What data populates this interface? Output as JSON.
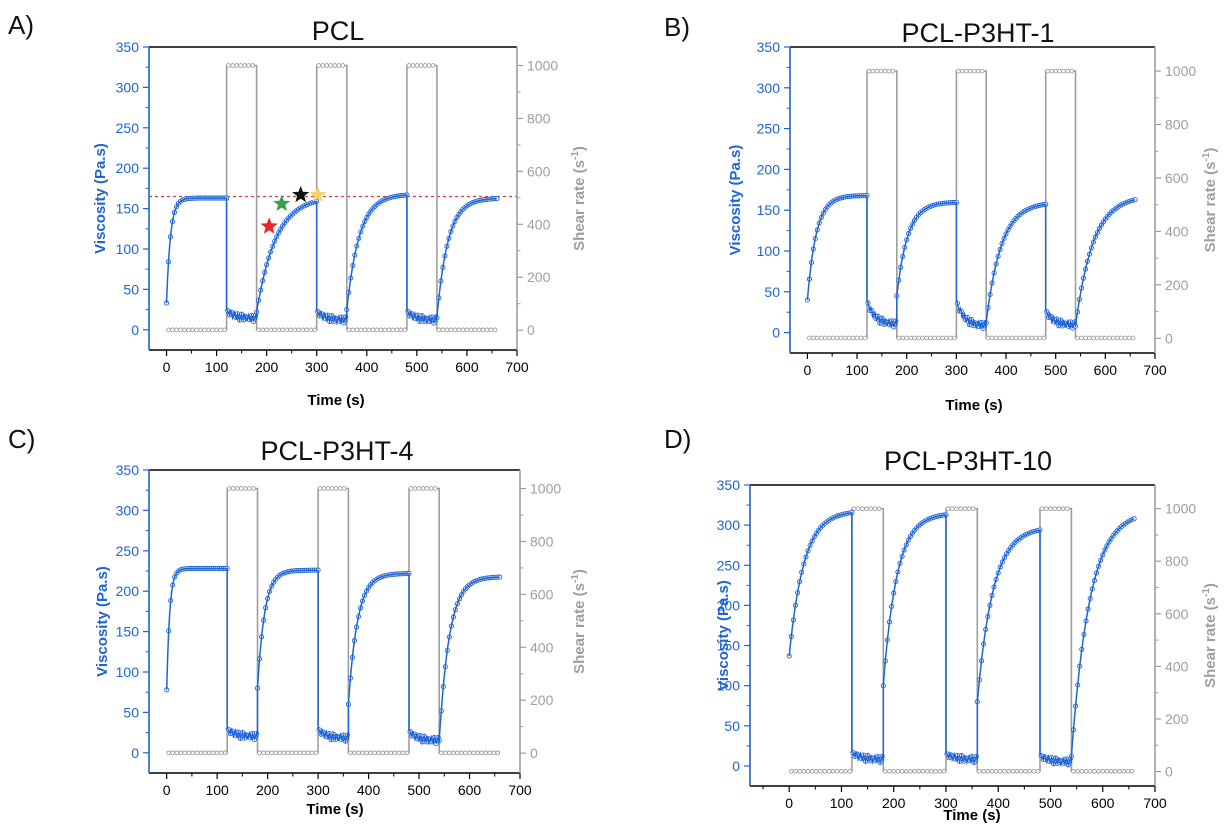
{
  "colors": {
    "viscosity": "#1f63d6",
    "shear": "#9e9e9e",
    "reference_line": "#e03a3a",
    "star_red": "#e8262a",
    "star_green": "#3b9e4f",
    "star_black": "#111111",
    "star_yellow": "#f5d36b"
  },
  "chart_data": [
    {
      "panel": "A)",
      "type": "line",
      "title": "PCL",
      "xlabel": "Time (s)",
      "ylabel": "Viscosity (Pa.s)",
      "y2label_main": "Shear rate (s",
      "y2label_sup": "-1",
      "y2label_end": ")",
      "xlim": [
        -35,
        700
      ],
      "ylim": [
        -25,
        350
      ],
      "y2lim": [
        -75,
        1070
      ],
      "xticks": [
        "0",
        "100",
        "200",
        "300",
        "400",
        "500",
        "600",
        "700"
      ],
      "yticks": [
        "0",
        "50",
        "100",
        "150",
        "200",
        "250",
        "300",
        "350"
      ],
      "y2ticks": [
        "0",
        "200",
        "400",
        "600",
        "800",
        "1000"
      ],
      "reference_line_y": 165,
      "stars": [
        {
          "name": "star-red",
          "x": 205,
          "y": 128,
          "color": "#e8262a"
        },
        {
          "name": "star-green",
          "x": 230,
          "y": 156,
          "color": "#3b9e4f"
        },
        {
          "name": "star-black",
          "x": 268,
          "y": 167,
          "color": "#111111"
        },
        {
          "name": "star-yellow",
          "x": 302,
          "y": 167,
          "color": "#f5d36b"
        }
      ],
      "series": [
        {
          "name": "Viscosity",
          "axis": "left",
          "segments": [
            {
              "t0": 0,
              "t1": 120,
              "v0": 33,
              "vinf": 163,
              "tau": 8,
              "kind": "recovery"
            },
            {
              "t0": 120,
              "t1": 180,
              "v0": 25,
              "vinf": 14,
              "tau": 15,
              "kind": "high"
            },
            {
              "t0": 180,
              "t1": 300,
              "v0": 22,
              "vinf": 165,
              "tau": 38,
              "kind": "recovery"
            },
            {
              "t0": 300,
              "t1": 360,
              "v0": 24,
              "vinf": 12,
              "tau": 15,
              "kind": "high"
            },
            {
              "t0": 360,
              "t1": 480,
              "v0": 25,
              "vinf": 168,
              "tau": 25,
              "kind": "recovery"
            },
            {
              "t0": 480,
              "t1": 540,
              "v0": 24,
              "vinf": 12,
              "tau": 15,
              "kind": "high"
            },
            {
              "t0": 540,
              "t1": 660,
              "v0": 15,
              "vinf": 163,
              "tau": 22,
              "kind": "recovery"
            }
          ]
        },
        {
          "name": "Shear rate",
          "axis": "right",
          "low": 1,
          "high": 1000,
          "steps": [
            [
              0,
              120,
              1
            ],
            [
              120,
              180,
              1000
            ],
            [
              180,
              300,
              1
            ],
            [
              300,
              360,
              1000
            ],
            [
              360,
              480,
              1
            ],
            [
              480,
              540,
              1000
            ],
            [
              540,
              660,
              1
            ]
          ]
        }
      ]
    },
    {
      "panel": "B)",
      "type": "line",
      "title": "PCL-P3HT-1",
      "xlabel": "Time (s)",
      "ylabel": "Viscosity (Pa.s)",
      "y2label_main": "Shear rate (s",
      "y2label_sup": "-1",
      "y2label_end": ")",
      "xlim": [
        -35,
        700
      ],
      "ylim": [
        -25,
        350
      ],
      "y2lim": [
        -55,
        1090
      ],
      "xticks": [
        "0",
        "100",
        "200",
        "300",
        "400",
        "500",
        "600",
        "700"
      ],
      "yticks": [
        "0",
        "50",
        "100",
        "150",
        "200",
        "250",
        "300",
        "350"
      ],
      "y2ticks": [
        "0",
        "200",
        "400",
        "600",
        "800",
        "1000"
      ],
      "series": [
        {
          "name": "Viscosity",
          "axis": "left",
          "segments": [
            {
              "t0": 0,
              "t1": 120,
              "v0": 40,
              "vinf": 168,
              "tau": 18,
              "kind": "recovery"
            },
            {
              "t0": 120,
              "t1": 180,
              "v0": 40,
              "vinf": 10,
              "tau": 15,
              "kind": "high"
            },
            {
              "t0": 180,
              "t1": 300,
              "v0": 45,
              "vinf": 160,
              "tau": 22,
              "kind": "recovery"
            },
            {
              "t0": 300,
              "t1": 360,
              "v0": 40,
              "vinf": 8,
              "tau": 15,
              "kind": "high"
            },
            {
              "t0": 360,
              "t1": 480,
              "v0": 12,
              "vinf": 160,
              "tau": 30,
              "kind": "recovery"
            },
            {
              "t0": 480,
              "t1": 540,
              "v0": 28,
              "vinf": 9,
              "tau": 15,
              "kind": "high"
            },
            {
              "t0": 540,
              "t1": 660,
              "v0": 8,
              "vinf": 168,
              "tau": 35,
              "kind": "recovery"
            }
          ]
        },
        {
          "name": "Shear rate",
          "axis": "right",
          "low": 1,
          "high": 1000,
          "steps": [
            [
              0,
              120,
              1
            ],
            [
              120,
              180,
              1000
            ],
            [
              180,
              300,
              1
            ],
            [
              300,
              360,
              1000
            ],
            [
              360,
              480,
              1
            ],
            [
              480,
              540,
              1000
            ],
            [
              540,
              660,
              1
            ]
          ]
        }
      ]
    },
    {
      "panel": "C)",
      "type": "line",
      "title": "PCL-P3HT-4",
      "xlabel": "Time (s)",
      "ylabel": "Viscosity (Pa.s)",
      "y2label_main": "Shear rate (s",
      "y2label_sup": "-1",
      "y2label_end": ")",
      "xlim": [
        -35,
        700
      ],
      "ylim": [
        -25,
        350
      ],
      "y2lim": [
        -75,
        1070
      ],
      "xticks": [
        "0",
        "100",
        "200",
        "300",
        "400",
        "500",
        "600",
        "700"
      ],
      "yticks": [
        "0",
        "50",
        "100",
        "150",
        "200",
        "250",
        "300",
        "350"
      ],
      "y2ticks": [
        "0",
        "200",
        "400",
        "600",
        "800",
        "1000"
      ],
      "series": [
        {
          "name": "Viscosity",
          "axis": "left",
          "segments": [
            {
              "t0": 0,
              "t1": 120,
              "v0": 78,
              "vinf": 228,
              "tau": 6,
              "kind": "recovery"
            },
            {
              "t0": 120,
              "t1": 180,
              "v0": 30,
              "vinf": 20,
              "tau": 15,
              "kind": "high"
            },
            {
              "t0": 180,
              "t1": 300,
              "v0": 80,
              "vinf": 226,
              "tau": 14,
              "kind": "recovery"
            },
            {
              "t0": 300,
              "t1": 360,
              "v0": 30,
              "vinf": 18,
              "tau": 15,
              "kind": "high"
            },
            {
              "t0": 360,
              "t1": 480,
              "v0": 60,
              "vinf": 222,
              "tau": 18,
              "kind": "recovery"
            },
            {
              "t0": 480,
              "t1": 540,
              "v0": 28,
              "vinf": 15,
              "tau": 15,
              "kind": "high"
            },
            {
              "t0": 540,
              "t1": 660,
              "v0": 15,
              "vinf": 218,
              "tau": 20,
              "kind": "recovery"
            }
          ]
        },
        {
          "name": "Shear rate",
          "axis": "right",
          "low": 1,
          "high": 1000,
          "steps": [
            [
              0,
              120,
              1
            ],
            [
              120,
              180,
              1000
            ],
            [
              180,
              300,
              1
            ],
            [
              300,
              360,
              1000
            ],
            [
              360,
              480,
              1
            ],
            [
              480,
              540,
              1000
            ],
            [
              540,
              660,
              1
            ]
          ]
        }
      ]
    },
    {
      "panel": "D)",
      "type": "line",
      "title": "PCL-P3HT-10",
      "xlabel": "Time (s)",
      "ylabel": "Viscosity (Pa.s)",
      "y2label_main": "Shear rate (s",
      "y2label_sup": "-1",
      "y2label_end": ")",
      "xlim": [
        -75,
        700
      ],
      "ylim": [
        -25,
        350
      ],
      "y2lim": [
        -55,
        1090
      ],
      "xticks": [
        "0",
        "100",
        "200",
        "300",
        "400",
        "500",
        "600",
        "700"
      ],
      "yticks": [
        "0",
        "50",
        "100",
        "150",
        "200",
        "250",
        "300",
        "350"
      ],
      "y2ticks": [
        "0",
        "200",
        "400",
        "600",
        "800",
        "1000"
      ],
      "series": [
        {
          "name": "Viscosity",
          "axis": "left",
          "segments": [
            {
              "t0": 0,
              "t1": 120,
              "v0": 137,
              "vinf": 318,
              "tau": 28,
              "kind": "recovery"
            },
            {
              "t0": 120,
              "t1": 180,
              "v0": 18,
              "vinf": 8,
              "tau": 15,
              "kind": "high"
            },
            {
              "t0": 180,
              "t1": 300,
              "v0": 100,
              "vinf": 315,
              "tau": 26,
              "kind": "recovery"
            },
            {
              "t0": 300,
              "t1": 360,
              "v0": 16,
              "vinf": 8,
              "tau": 15,
              "kind": "high"
            },
            {
              "t0": 360,
              "t1": 480,
              "v0": 80,
              "vinf": 298,
              "tau": 30,
              "kind": "recovery"
            },
            {
              "t0": 480,
              "t1": 540,
              "v0": 14,
              "vinf": 5,
              "tau": 15,
              "kind": "high"
            },
            {
              "t0": 540,
              "t1": 660,
              "v0": 12,
              "vinf": 318,
              "tau": 35,
              "kind": "recovery"
            }
          ]
        },
        {
          "name": "Shear rate",
          "axis": "right",
          "low": 1,
          "high": 1000,
          "steps": [
            [
              0,
              120,
              1
            ],
            [
              120,
              180,
              1000
            ],
            [
              180,
              300,
              1
            ],
            [
              300,
              360,
              1000
            ],
            [
              360,
              480,
              1
            ],
            [
              480,
              540,
              1000
            ],
            [
              540,
              660,
              1
            ]
          ]
        }
      ]
    }
  ]
}
